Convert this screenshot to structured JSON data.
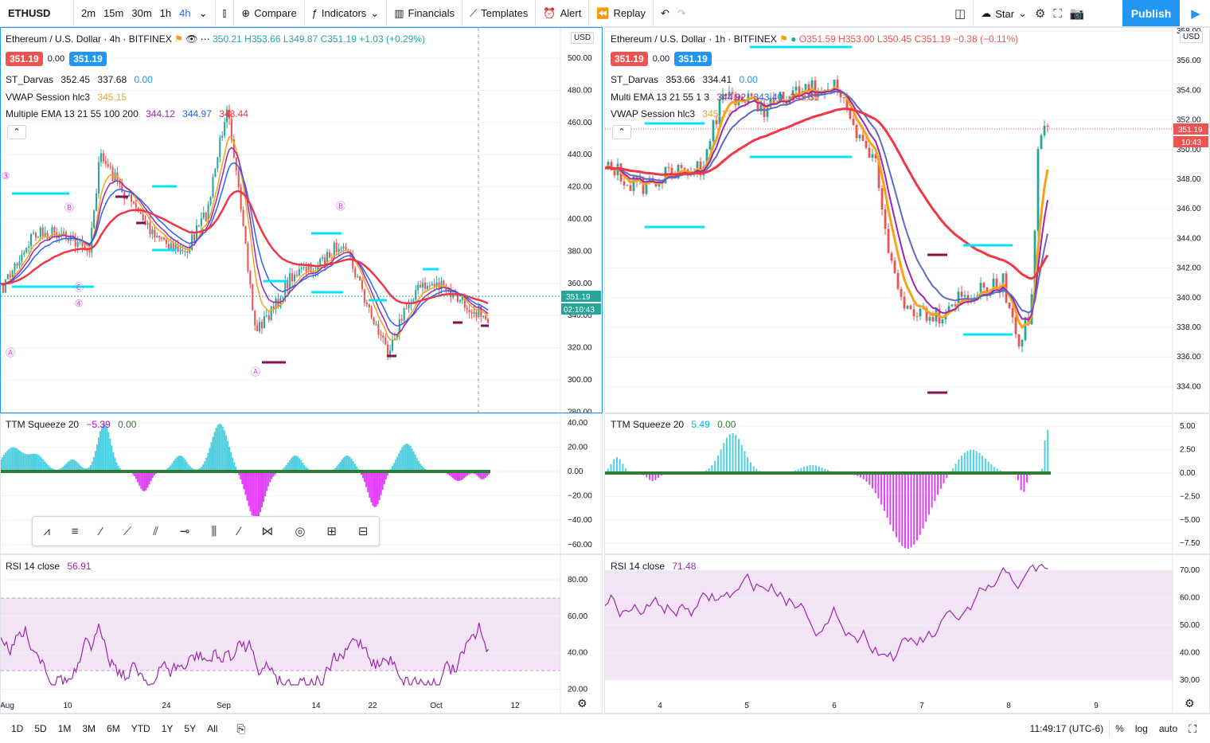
{
  "topbar": {
    "symbol": "ETHUSD",
    "intervals": [
      "2m",
      "15m",
      "30m",
      "1h",
      "4h"
    ],
    "active_interval": "4h",
    "compare": "Compare",
    "indicators": "Indicators",
    "financials": "Financials",
    "templates": "Templates",
    "alert": "Alert",
    "replay": "Replay",
    "layout_name": "Star",
    "publish": "Publish"
  },
  "left": {
    "title": "Ethereum / U.S. Dollar · 4h · BITFINEX",
    "ohlc": [
      "350.21",
      "H353.66",
      "L349.87",
      "C351.19",
      "+1.03 (+0.29%)"
    ],
    "sell": "351.19",
    "spread": "0.00",
    "buy": "351.19",
    "darvas": {
      "name": "ST_Darvas",
      "v1": "352.45",
      "v2": "337.68",
      "v3": "0.00"
    },
    "vwap": {
      "name": "VWAP Session hlc3",
      "v": "345.15"
    },
    "ema": {
      "name": "Multiple EMA 13 21 55 100 200",
      "v1": "344.12",
      "v2": "344.97",
      "v3": "348.44"
    },
    "currency": "USD",
    "price_ticks": [
      "500.00",
      "480.00",
      "460.00",
      "440.00",
      "420.00",
      "400.00",
      "380.00",
      "360.00",
      "340.00",
      "320.00",
      "300.00",
      "280.00"
    ],
    "last_price": "351.19",
    "countdown": "02:10:43",
    "ttm": {
      "name": "TTM Squeeze 20",
      "v1": "−5.39",
      "v2": "0.00",
      "ticks": [
        "40.00",
        "20.00",
        "0.00",
        "−20.00",
        "−40.00",
        "−60.00"
      ]
    },
    "rsi": {
      "name": "RSI 14 close",
      "v": "56.91",
      "ticks": [
        "80.00",
        "60.00",
        "40.00",
        "20.00"
      ]
    },
    "time_ticks": [
      "Aug",
      "10",
      "24",
      "Sep",
      "14",
      "22",
      "Oct",
      "12"
    ]
  },
  "right": {
    "title": "Ethereum / U.S. Dollar · 1h · BITFINEX",
    "ohlc": [
      "O351.59",
      "H353.00",
      "L350.45",
      "C351.19",
      "−0.38 (−0.11%)"
    ],
    "sell": "351.19",
    "spread": "0.00",
    "buy": "351.19",
    "darvas": {
      "name": "ST_Darvas",
      "v1": "353.66",
      "v2": "334.41",
      "v3": "0.00"
    },
    "ema": {
      "name": "Multi EMA 13 21 55 1 3",
      "v1": "344.92",
      "v2": "343.40",
      "v3": "343.31"
    },
    "vwap": {
      "name": "VWAP Session hlc3",
      "v": "345.17"
    },
    "currency": "USD",
    "price_ticks": [
      "358.00",
      "356.00",
      "354.00",
      "352.00",
      "350.00",
      "348.00",
      "346.00",
      "344.00",
      "342.00",
      "340.00",
      "338.00",
      "336.00",
      "334.00",
      "332.00"
    ],
    "last_price": "351.19",
    "countdown": "10:43",
    "ttm": {
      "name": "TTM Squeeze 20",
      "v1": "5.49",
      "v2": "0.00",
      "ticks": [
        "5.00",
        "2.50",
        "0.00",
        "−2.50",
        "−5.00",
        "−7.50"
      ]
    },
    "rsi": {
      "name": "RSI 14 close",
      "v": "71.48",
      "ticks": [
        "70.00",
        "60.00",
        "50.00",
        "40.00",
        "30.00"
      ]
    },
    "time_ticks": [
      "4",
      "5",
      "6",
      "7",
      "8",
      "9"
    ]
  },
  "bottombar": {
    "ranges": [
      "1D",
      "5D",
      "1M",
      "3M",
      "6M",
      "YTD",
      "1Y",
      "5Y",
      "All"
    ],
    "clock": "11:49:17 (UTC-6)",
    "percent": "%",
    "log": "log",
    "auto": "auto"
  },
  "colors": {
    "accent": "#2196f3",
    "sell": "#ef5350",
    "buy": "#2196f3",
    "ema_red": "#f23645",
    "vwap": "#f7a21b",
    "darvas": "#00e5ff"
  },
  "drawing_tools": [
    "pattern-icon",
    "fib-icon",
    "elliott-icon",
    "trendline-icon",
    "channel-icon",
    "horizontal-ray-icon",
    "gann-icon",
    "line-icon",
    "xabcd-icon",
    "cyclic-icon",
    "long-position-icon",
    "short-position-icon"
  ]
}
